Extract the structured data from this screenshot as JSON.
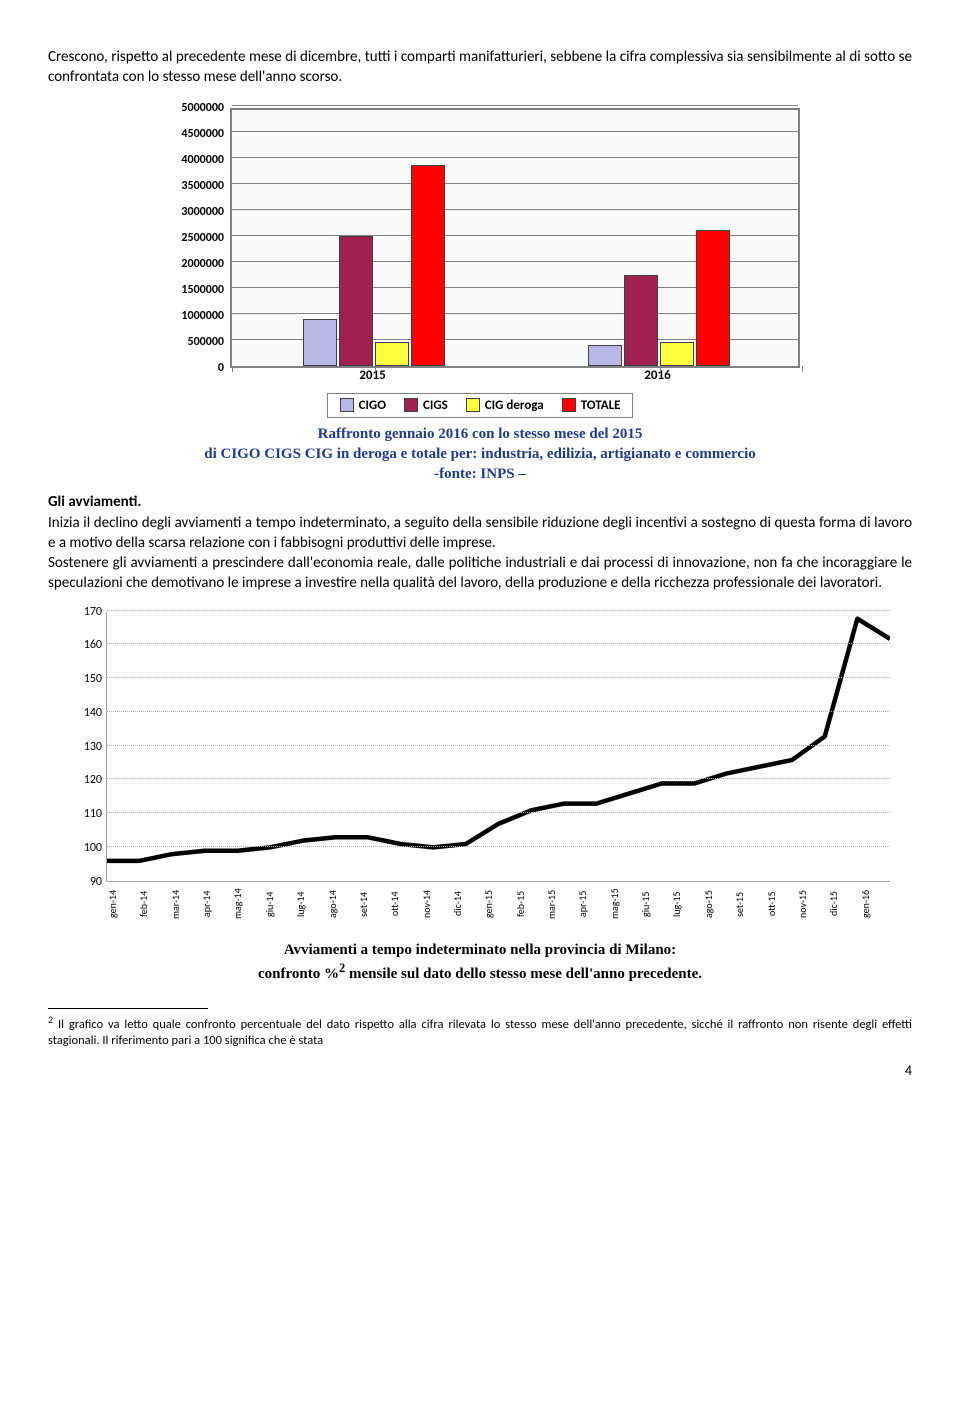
{
  "para1": "Crescono, rispetto al precedente mese di dicembre, tutti i comparti manifatturieri, sebbene la cifra complessiva sia sensibilmente al di sotto se confrontata con lo stesso mese dell'anno scorso.",
  "chart1": {
    "type": "bar",
    "ylim": [
      0,
      5000000
    ],
    "ytick_step": 500000,
    "yticks": [
      "0",
      "500000",
      "1000000",
      "1500000",
      "2000000",
      "2500000",
      "3000000",
      "3500000",
      "4000000",
      "4500000",
      "5000000"
    ],
    "categories": [
      "2015",
      "2016"
    ],
    "series": [
      "CIGO",
      "CIGS",
      "CIG deroga",
      "TOTALE"
    ],
    "series_colors": [
      "#b8b8e8",
      "#a02050",
      "#ffff40",
      "#ff0000"
    ],
    "values": [
      [
        900000,
        2500000,
        450000,
        3850000
      ],
      [
        400000,
        1750000,
        450000,
        2600000
      ]
    ],
    "background_color": "#fafafa",
    "grid_color": "#808080",
    "font_size": 12
  },
  "legend_items": [
    "CIGO",
    "CIGS",
    "CIG deroga",
    "TOTALE"
  ],
  "caption1_l1": "Raffronto gennaio 2016 con lo stesso mese del  2015",
  "caption1_l2": "di CIGO CIGS  CIG in deroga e totale per: industria, edilizia, artigianato e commercio",
  "caption1_l3": "-fonte: INPS –",
  "inline_label": "Gli avviamenti.",
  "para2": "Inizia il declino degli avviamenti a tempo indeterminato, a seguito della sensibile riduzione degli incentivi a sostegno di questa forma di lavoro e a motivo della scarsa relazione con i fabbisogni produttivi delle imprese.",
  "para3": "Sostenere gli avviamenti a prescindere dall'economia reale, dalle politiche industriali e dai processi di innovazione, non fa che incoraggiare le speculazioni che demotivano le imprese a investire nella qualità del lavoro, della produzione e della ricchezza professionale dei lavoratori.",
  "chart2": {
    "type": "line",
    "ylim": [
      90,
      170
    ],
    "ytick_step": 10,
    "yticks": [
      "90",
      "100",
      "110",
      "120",
      "130",
      "140",
      "150",
      "160",
      "170"
    ],
    "categories": [
      "gen-14",
      "feb-14",
      "mar-14",
      "apr-14",
      "mag-14",
      "giu-14",
      "lug-14",
      "ago-14",
      "set-14",
      "ott-14",
      "nov-14",
      "dic-14",
      "gen-15",
      "feb-15",
      "mar-15",
      "apr-15",
      "mag-15",
      "giu-15",
      "lug-15",
      "ago-15",
      "set-15",
      "ott-15",
      "nov-15",
      "dic-15",
      "gen-16"
    ],
    "values": [
      96,
      96,
      98,
      99,
      99,
      100,
      102,
      103,
      103,
      101,
      100,
      101,
      107,
      111,
      113,
      113,
      116,
      119,
      119,
      122,
      124,
      126,
      133,
      168,
      162
    ],
    "line_color": "#000000",
    "line_width": 4.5,
    "grid_color": "#b0b0b0",
    "background_color": "#ffffff",
    "font_size": 12
  },
  "caption2_l1": "Avviamenti a tempo indeterminato nella provincia di Milano:",
  "caption2_l2_a": "confronto %",
  "caption2_sup": "2",
  "caption2_l2_b": " mensile sul dato dello stesso mese dell'anno precedente.",
  "footnote_sup": "2",
  "footnote_text": " Il grafico va letto quale confronto percentuale del dato rispetto alla cifra rilevata lo stesso mese dell'anno precedente, sicché il raffronto non risente degli effetti stagionali. Il riferimento pari a 100 significa che è stata",
  "pagenum": "4"
}
